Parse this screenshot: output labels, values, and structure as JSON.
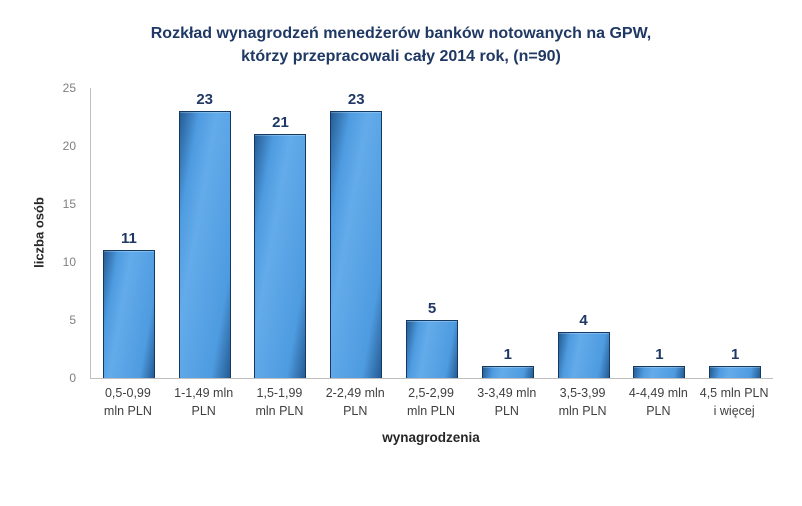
{
  "chart_data": {
    "type": "bar",
    "title_line1": "Rozkład wynagrodzeń menedżerów banków notowanych na GPW,",
    "title_line2": "którzy przepracowali cały 2014 rok, (n=90)",
    "categories": [
      "0,5-0,99\nmln PLN",
      "1-1,49 mln\nPLN",
      "1,5-1,99\nmln PLN",
      "2-2,49 mln\nPLN",
      "2,5-2,99\nmln PLN",
      "3-3,49 mln\nPLN",
      "3,5-3,99\nmln PLN",
      "4-4,49 mln\nPLN",
      "4,5 mln PLN\ni więcej"
    ],
    "values": [
      11,
      23,
      21,
      23,
      5,
      1,
      4,
      1,
      1
    ],
    "xlabel": "wynagrodzenia",
    "ylabel": "liczba osób",
    "ylim": [
      0,
      25
    ],
    "yticks": [
      0,
      5,
      10,
      15,
      20,
      25
    ],
    "grid": false,
    "legend": "none",
    "colors": {
      "title": "#1F3864",
      "value_label": "#1F3864",
      "bar_fill_light": "#63ABEA",
      "bar_fill_mid": "#4E9BE0",
      "bar_fill_dark": "#255C94",
      "bar_border": "#123A63",
      "axis_line": "#BFBFBF",
      "tick_label": "#7F7F7F",
      "category_label": "#3F3F3F"
    }
  }
}
